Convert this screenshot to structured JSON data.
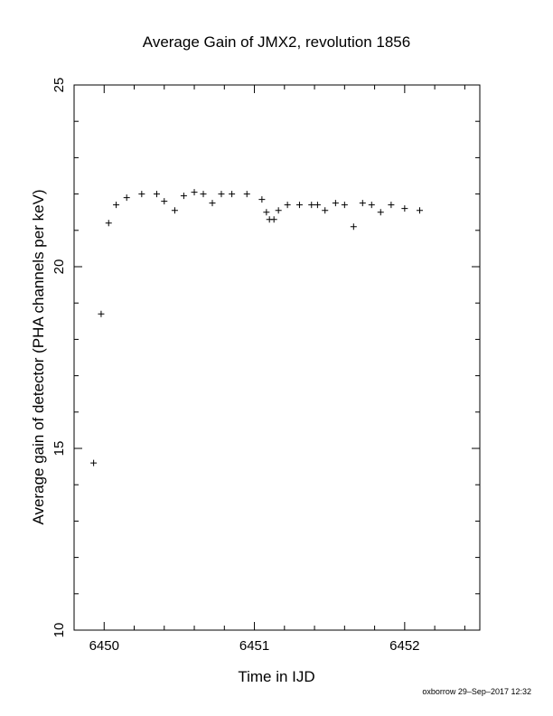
{
  "chart_data": {
    "type": "scatter",
    "title": "Average Gain of JMX2, revolution 1856",
    "xlabel": "Time in IJD",
    "ylabel": "Average gain of detector (PHA channels per keV)",
    "xlim": [
      6449.8,
      6452.5
    ],
    "ylim": [
      10,
      25
    ],
    "x_ticks": [
      6450,
      6451,
      6452
    ],
    "y_ticks": [
      10,
      15,
      20,
      25
    ],
    "grid": false,
    "marker": "+",
    "series": [
      {
        "x": [
          6449.93,
          6449.98,
          6450.03,
          6450.08,
          6450.15,
          6450.25,
          6450.35,
          6450.4,
          6450.47,
          6450.53,
          6450.6,
          6450.66,
          6450.72,
          6450.78,
          6450.85,
          6450.95,
          6451.05,
          6451.08,
          6451.1,
          6451.13,
          6451.16,
          6451.22,
          6451.3,
          6451.38,
          6451.42,
          6451.47,
          6451.54,
          6451.6,
          6451.66,
          6451.72,
          6451.78,
          6451.84,
          6451.91,
          6452.0,
          6452.1
        ],
        "y": [
          14.6,
          18.7,
          21.2,
          21.7,
          21.9,
          22.0,
          22.0,
          21.8,
          21.55,
          21.95,
          22.05,
          22.0,
          21.75,
          22.0,
          22.0,
          22.0,
          21.85,
          21.5,
          21.3,
          21.3,
          21.55,
          21.7,
          21.7,
          21.7,
          21.7,
          21.55,
          21.75,
          21.7,
          21.1,
          21.75,
          21.7,
          21.5,
          21.7,
          21.6,
          21.55
        ]
      }
    ]
  },
  "footer": {
    "credit": "oxborrow 29–Sep–2017 12:32"
  }
}
